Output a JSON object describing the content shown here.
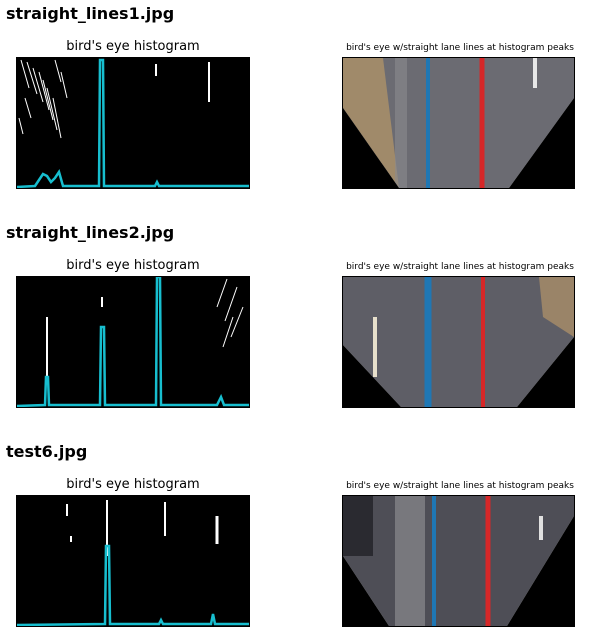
{
  "rows": [
    {
      "filename": "straight_lines1.jpg",
      "histogram_title": "bird's eye histogram",
      "birds_eye_title": "bird's eye w/straight lane lines at histogram peaks",
      "left_lane_color": "#1f77b4",
      "right_lane_color": "#d62728",
      "histogram_color": "#17becf"
    },
    {
      "filename": "straight_lines2.jpg",
      "histogram_title": "bird's eye histogram",
      "birds_eye_title": "bird's eye w/straight lane lines at histogram peaks",
      "left_lane_color": "#1f77b4",
      "right_lane_color": "#d62728",
      "histogram_color": "#17becf"
    },
    {
      "filename": "test6.jpg",
      "histogram_title": "bird's eye histogram",
      "birds_eye_title": "bird's eye w/straight lane lines at histogram peaks",
      "left_lane_color": "#1f77b4",
      "right_lane_color": "#d62728",
      "histogram_color": "#17becf"
    }
  ]
}
